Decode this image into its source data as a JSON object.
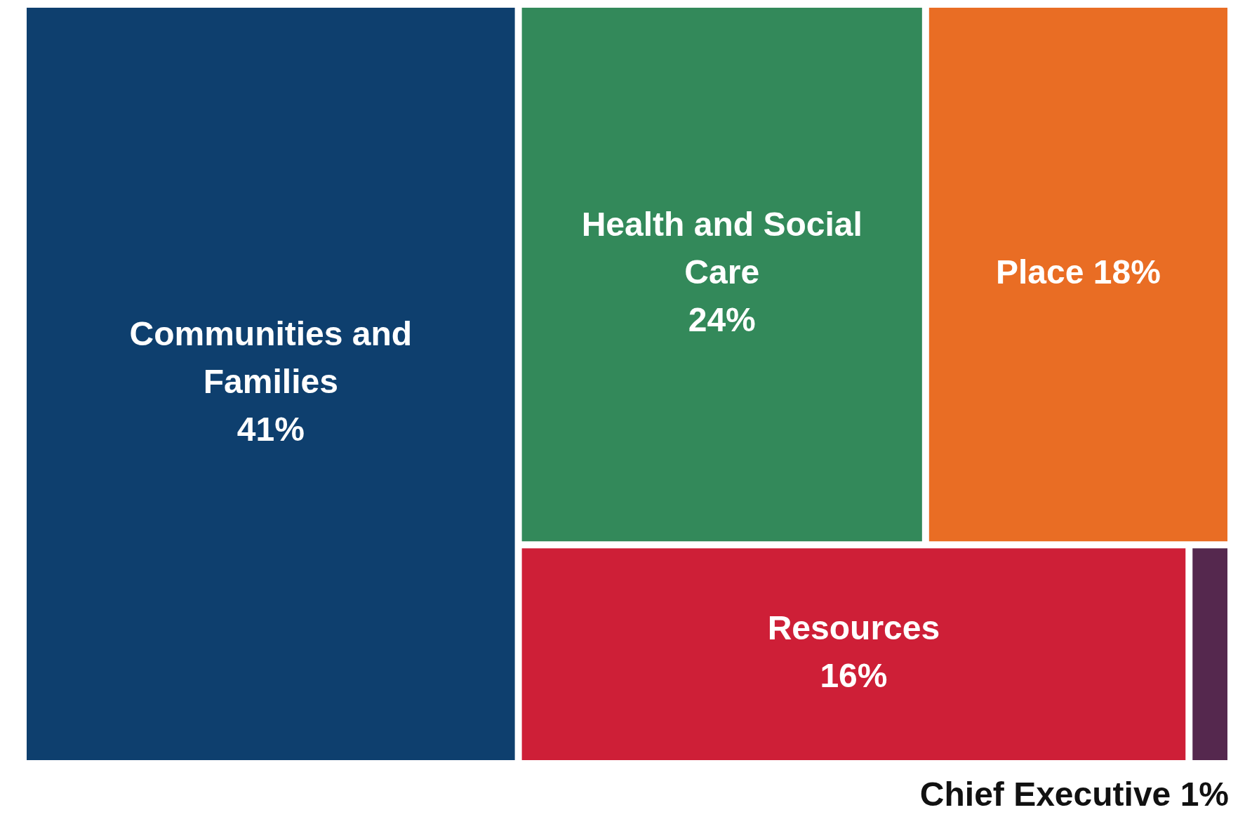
{
  "chart_data": {
    "type": "other",
    "categories": [
      "Communities and Families",
      "Health and Social Care",
      "Place",
      "Resources",
      "Chief Executive"
    ],
    "values": [
      41,
      24,
      18,
      16,
      1
    ],
    "value_labels": [
      "41%",
      "24%",
      "18%",
      "16%",
      "1%"
    ],
    "colors": [
      "#0e3f6e",
      "#33895a",
      "#e96d24",
      "#ce1f37",
      "#55284e"
    ]
  }
}
